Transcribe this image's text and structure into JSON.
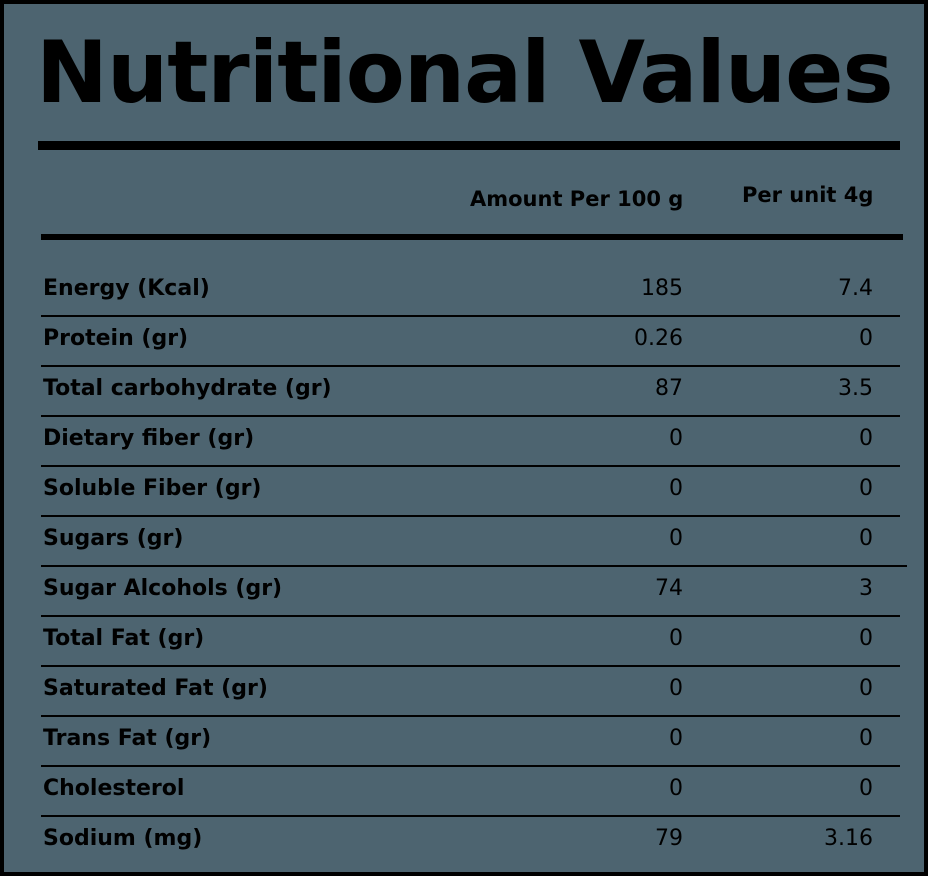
{
  "title": "Nutritional Values",
  "columns": {
    "per_100": "Amount Per 100 g",
    "per_unit": "Per unit 4g"
  },
  "rows": [
    {
      "label": "Energy (Kcal)",
      "per_100": "185",
      "per_unit": "7.4"
    },
    {
      "label": "Protein (gr)",
      "per_100": "0.26",
      "per_unit": "0"
    },
    {
      "label": "Total carbohydrate (gr)",
      "per_100": "87",
      "per_unit": "3.5"
    },
    {
      "label": "Dietary fiber (gr)",
      "per_100": "0",
      "per_unit": "0"
    },
    {
      "label": "Soluble Fiber (gr)",
      "per_100": "0",
      "per_unit": "0"
    },
    {
      "label": "Sugars (gr)",
      "per_100": "0",
      "per_unit": "0"
    },
    {
      "label": "Sugar Alcohols (gr)",
      "per_100": "74",
      "per_unit": "3"
    },
    {
      "label": "Total Fat (gr)",
      "per_100": "0",
      "per_unit": "0"
    },
    {
      "label": "Saturated Fat (gr)",
      "per_100": "0",
      "per_unit": "0"
    },
    {
      "label": "Trans Fat (gr)",
      "per_100": "0",
      "per_unit": "0"
    },
    {
      "label": "Cholesterol",
      "per_100": "0",
      "per_unit": "0"
    },
    {
      "label": "Sodium (mg)",
      "per_100": "79",
      "per_unit": "3.16"
    }
  ],
  "colors": {
    "background": "#4d6470",
    "text": "#000000"
  }
}
